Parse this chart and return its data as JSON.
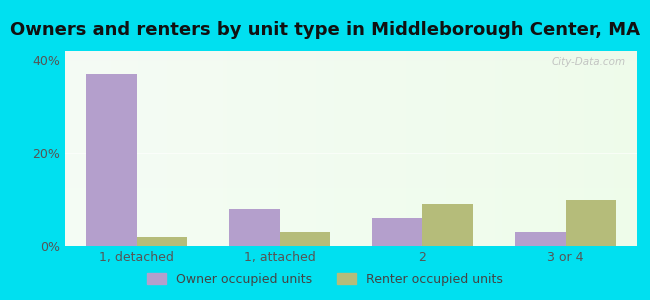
{
  "title": "Owners and renters by unit type in Middleborough Center, MA",
  "categories": [
    "1, detached",
    "1, attached",
    "2",
    "3 or 4"
  ],
  "owner_vals": [
    37,
    8,
    6,
    3
  ],
  "renter_vals": [
    2,
    3,
    9,
    10
  ],
  "owner_color": "#b49fcc",
  "renter_color": "#b5bc7a",
  "ylim": [
    0,
    42
  ],
  "yticks": [
    0,
    20,
    40
  ],
  "ytick_labels": [
    "0%",
    "20%",
    "40%"
  ],
  "background_outer": "#00e0f0",
  "legend_owner": "Owner occupied units",
  "legend_renter": "Renter occupied units",
  "bar_width": 0.35,
  "title_fontsize": 13,
  "tick_fontsize": 9,
  "legend_fontsize": 9
}
